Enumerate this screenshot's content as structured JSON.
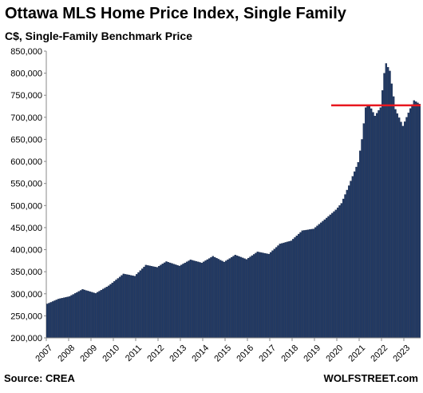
{
  "chart_data": {
    "type": "bar",
    "title": "Ottawa MLS Home Price Index, Single Family",
    "subtitle": "C$, Single-Family Benchmark Price",
    "xlabel": "",
    "ylabel": "",
    "ylim": [
      200000,
      850000
    ],
    "yticks": [
      200000,
      250000,
      300000,
      350000,
      400000,
      450000,
      500000,
      550000,
      600000,
      650000,
      700000,
      750000,
      800000,
      850000
    ],
    "ytick_labels": [
      "200,000",
      "250,000",
      "300,000",
      "350,000",
      "400,000",
      "450,000",
      "500,000",
      "550,000",
      "600,000",
      "650,000",
      "700,000",
      "750,000",
      "800,000",
      "850,000"
    ],
    "xticks": [
      "2007",
      "2008",
      "2009",
      "2010",
      "2011",
      "2012",
      "2013",
      "2014",
      "2015",
      "2016",
      "2017",
      "2018",
      "2019",
      "2020",
      "2021",
      "2022",
      "2023"
    ],
    "grid": false,
    "legend": "none",
    "bar_color": "#1f3864",
    "reference_line": {
      "value": 727000,
      "from": "2019-10",
      "to": "2023-09",
      "color": "#e8171f"
    },
    "start_month": "2007-01",
    "end_month": "2023-09",
    "anchors": [
      [
        "2007-01",
        277000
      ],
      [
        "2007-07",
        288000
      ],
      [
        "2008-01",
        294000
      ],
      [
        "2008-08",
        310000
      ],
      [
        "2009-03",
        301000
      ],
      [
        "2009-10",
        318000
      ],
      [
        "2010-06",
        345000
      ],
      [
        "2010-12",
        340000
      ],
      [
        "2011-06",
        365000
      ],
      [
        "2011-12",
        360000
      ],
      [
        "2012-05",
        373000
      ],
      [
        "2012-12",
        363000
      ],
      [
        "2013-06",
        377000
      ],
      [
        "2013-12",
        370000
      ],
      [
        "2014-06",
        385000
      ],
      [
        "2014-12",
        372000
      ],
      [
        "2015-06",
        388000
      ],
      [
        "2015-12",
        378000
      ],
      [
        "2016-06",
        395000
      ],
      [
        "2016-12",
        390000
      ],
      [
        "2017-06",
        413000
      ],
      [
        "2017-12",
        420000
      ],
      [
        "2018-06",
        443000
      ],
      [
        "2018-12",
        447000
      ],
      [
        "2019-06",
        468000
      ],
      [
        "2019-12",
        490000
      ],
      [
        "2020-03",
        505000
      ],
      [
        "2020-07",
        545000
      ],
      [
        "2020-12",
        598000
      ],
      [
        "2021-02",
        650000
      ],
      [
        "2021-04",
        722000
      ],
      [
        "2021-06",
        728000
      ],
      [
        "2021-09",
        703000
      ],
      [
        "2021-12",
        722000
      ],
      [
        "2022-02",
        800000
      ],
      [
        "2022-03",
        822000
      ],
      [
        "2022-05",
        805000
      ],
      [
        "2022-08",
        718000
      ],
      [
        "2022-12",
        680000
      ],
      [
        "2023-04",
        720000
      ],
      [
        "2023-06",
        738000
      ],
      [
        "2023-09",
        730000
      ]
    ]
  },
  "footer": {
    "source": "Source: CREA",
    "brand": "WOLFSTREET.com"
  }
}
